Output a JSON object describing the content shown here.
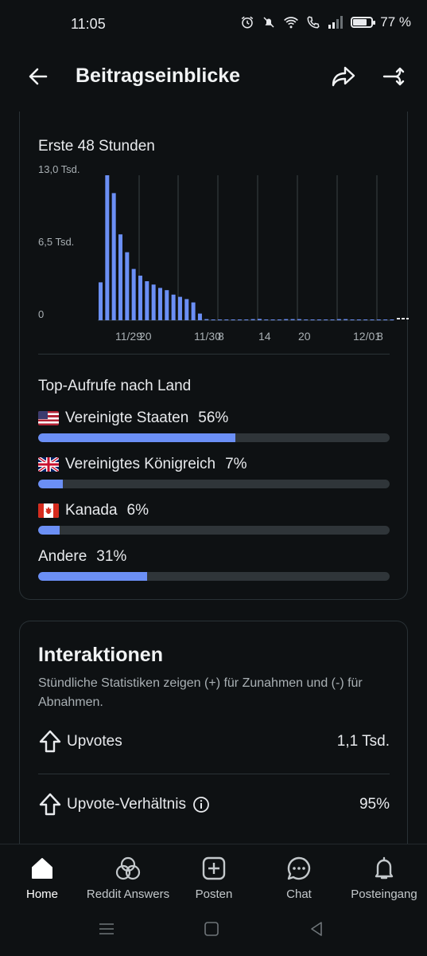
{
  "status_bar": {
    "time": "11:05",
    "battery": "77 %",
    "battery_level": 0.77
  },
  "header": {
    "title": "Beitragseinblicke"
  },
  "chart_section": {
    "title": "Erste 48 Stunden",
    "y_ticks": [
      "13,0 Tsd.",
      "6,5 Tsd.",
      "0"
    ],
    "x_ticks": [
      "11/29",
      "20",
      "11/30",
      "8",
      "14",
      "20",
      "12/01",
      "8"
    ]
  },
  "chart_data": {
    "type": "bar",
    "title": "Erste 48 Stunden",
    "ylim": [
      0,
      13000
    ],
    "y_tick_labels": [
      "13,0 Tsd.",
      "6,5 Tsd.",
      "0"
    ],
    "x_tick_labels": [
      "11/29",
      "20",
      "11/30",
      "8",
      "14",
      "20",
      "12/01",
      "8"
    ],
    "values": [
      3400,
      13000,
      11400,
      7700,
      6100,
      4600,
      4000,
      3500,
      3200,
      2900,
      2700,
      2300,
      2100,
      1900,
      1600,
      600,
      100,
      60,
      50,
      40,
      40,
      40,
      40,
      100,
      120,
      40,
      40,
      40,
      100,
      100,
      100,
      40,
      40,
      40,
      40,
      40,
      100,
      100,
      40,
      40,
      40,
      40,
      40,
      40,
      40
    ]
  },
  "countries": {
    "title": "Top-Aufrufe nach Land",
    "items": [
      {
        "label": "Vereinigte Staaten",
        "percent": "56%",
        "value": 0.56,
        "flag": "us-flag"
      },
      {
        "label": "Vereinigtes Königreich",
        "percent": "7%",
        "value": 0.07,
        "flag": "uk-flag"
      },
      {
        "label": "Kanada",
        "percent": "6%",
        "value": 0.06,
        "flag": "canada-flag"
      },
      {
        "label": "Andere",
        "percent": "31%",
        "value": 0.31,
        "flag": ""
      }
    ]
  },
  "interactions": {
    "title": "Interaktionen",
    "description": "Stündliche Statistiken zeigen (+) für Zunahmen und (-) für Abnahmen.",
    "upvotes_label": "Upvotes",
    "upvotes_value": "1,1 Tsd.",
    "ratio_label": "Upvote-Verhältnis",
    "ratio_value": "95%"
  },
  "bottom_nav": {
    "items": [
      {
        "label": "Home",
        "icon": "home-icon"
      },
      {
        "label": "Reddit Answers",
        "icon": "answers-icon"
      },
      {
        "label": "Posten",
        "icon": "plus-square-icon"
      },
      {
        "label": "Chat",
        "icon": "chat-icon"
      },
      {
        "label": "Posteingang",
        "icon": "bell-icon"
      }
    ]
  },
  "colors": {
    "background": "#0e1113",
    "accent": "#6b8ff5",
    "track": "#2f3539",
    "text": "#e8eaed",
    "muted": "#a9b0b4"
  }
}
